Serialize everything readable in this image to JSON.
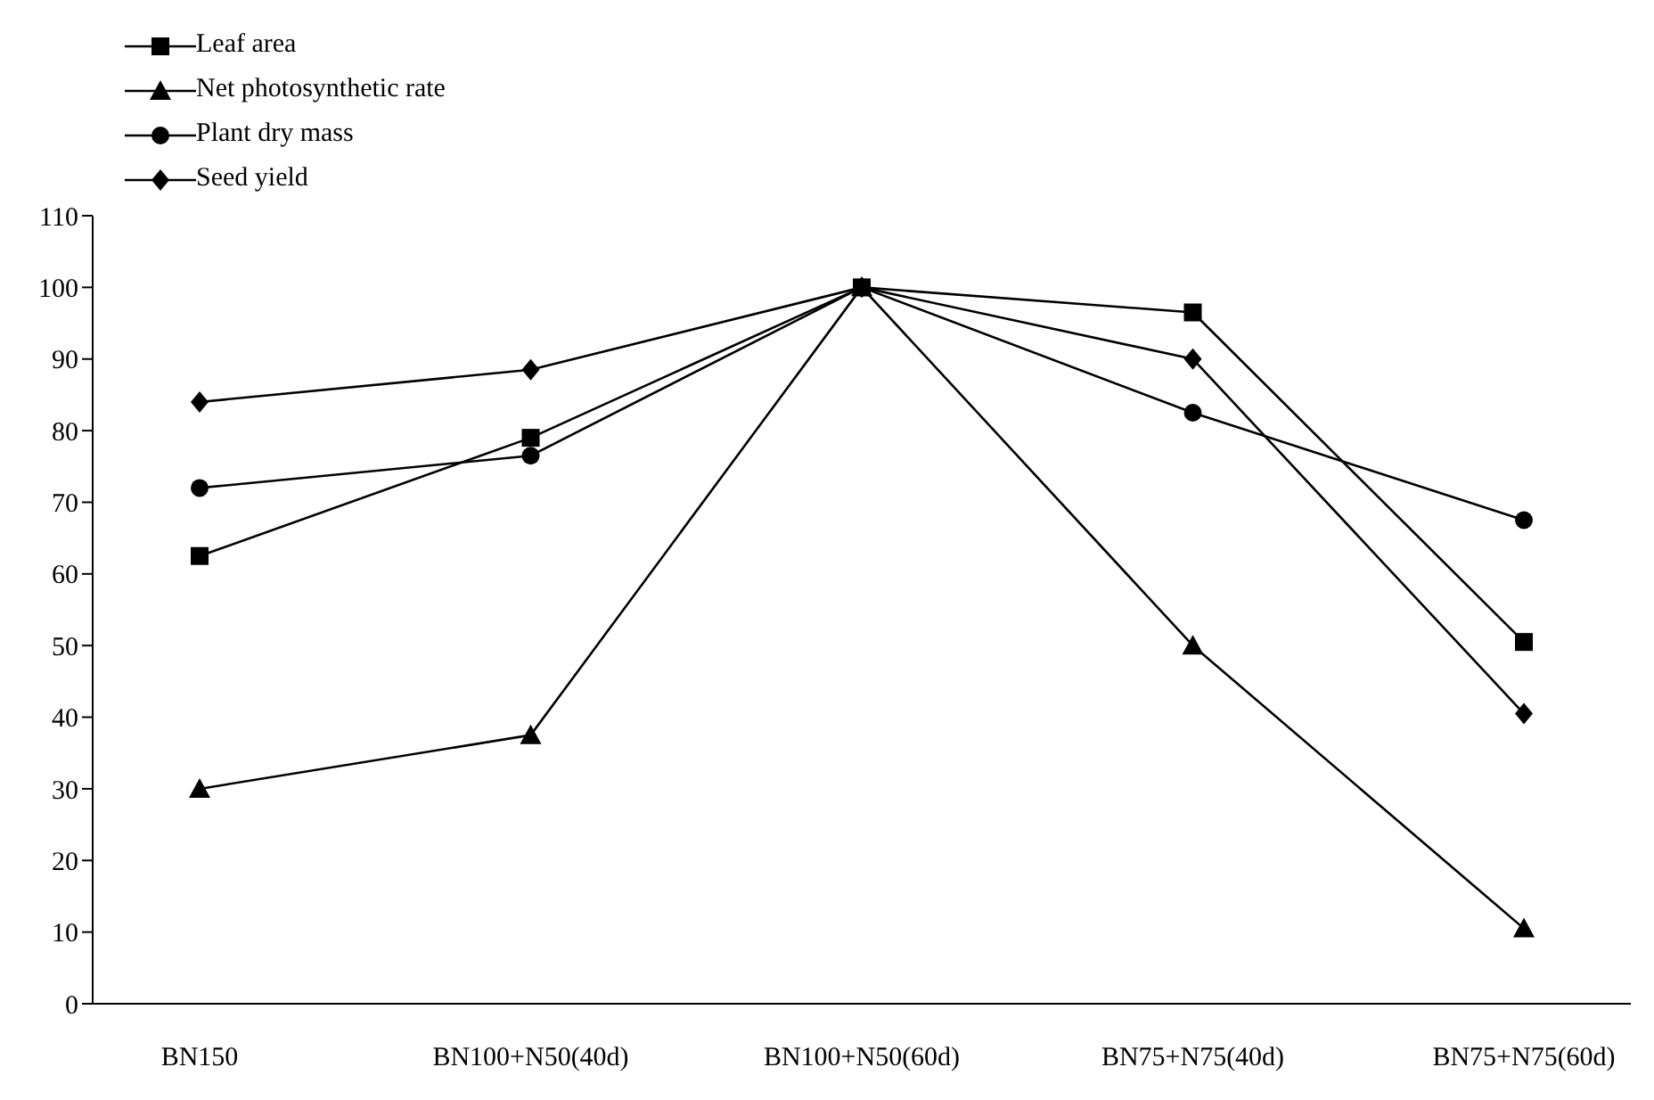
{
  "chart_data": {
    "type": "line",
    "categories": [
      "BN150",
      "BN100+N50(40d)",
      "BN100+N50(60d)",
      "BN75+N75(40d)",
      "BN75+N75(60d)"
    ],
    "series": [
      {
        "name": "Leaf area",
        "color": "#000000",
        "marker": "square",
        "values": [
          62.5,
          79,
          100,
          96.5,
          50.5
        ]
      },
      {
        "name": "Net photosynthetic rate",
        "color": "#000000",
        "marker": "triangle",
        "values": [
          30,
          37.5,
          100,
          50,
          10.5
        ]
      },
      {
        "name": "Plant dry mass",
        "color": "#000000",
        "marker": "circle",
        "values": [
          72,
          76.5,
          100,
          82.5,
          67.5
        ]
      },
      {
        "name": "Seed yield",
        "color": "#000000",
        "marker": "diamond",
        "values": [
          84,
          88.5,
          100,
          90,
          40.5
        ]
      }
    ],
    "ylim": [
      0,
      110
    ],
    "yticks": [
      0,
      10,
      20,
      30,
      40,
      50,
      60,
      70,
      80,
      90,
      100,
      110
    ],
    "grid": false,
    "legend": "top left",
    "line_style": "solid"
  }
}
